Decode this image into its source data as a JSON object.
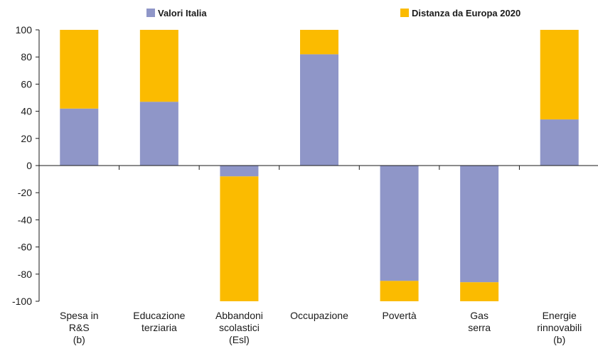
{
  "chart_data": {
    "type": "bar",
    "stacked": true,
    "categories": [
      [
        "Spesa in",
        "R&S",
        "(b)"
      ],
      [
        "Educazione",
        "terziaria"
      ],
      [
        "Abbandoni",
        "scolastici",
        "(Esl)"
      ],
      [
        "Occupazione"
      ],
      [
        "Povertà"
      ],
      [
        "Gas",
        "serra"
      ],
      [
        "Energie",
        "rinnovabili",
        "(b)"
      ]
    ],
    "series": [
      {
        "name": "Valori Italia",
        "color": "#8f96c8",
        "values": [
          42,
          47,
          -8,
          82,
          -85,
          -86,
          34
        ]
      },
      {
        "name": "Distanza da Europa 2020",
        "color": "#fbbb00",
        "values": [
          58,
          53,
          -92,
          18,
          -15,
          -14,
          66
        ]
      }
    ],
    "ylim": [
      -100,
      100
    ],
    "yticks": [
      100,
      80,
      60,
      40,
      20,
      0,
      -20,
      -40,
      -60,
      -80,
      -100
    ],
    "legend_position": "top",
    "grid": false
  }
}
